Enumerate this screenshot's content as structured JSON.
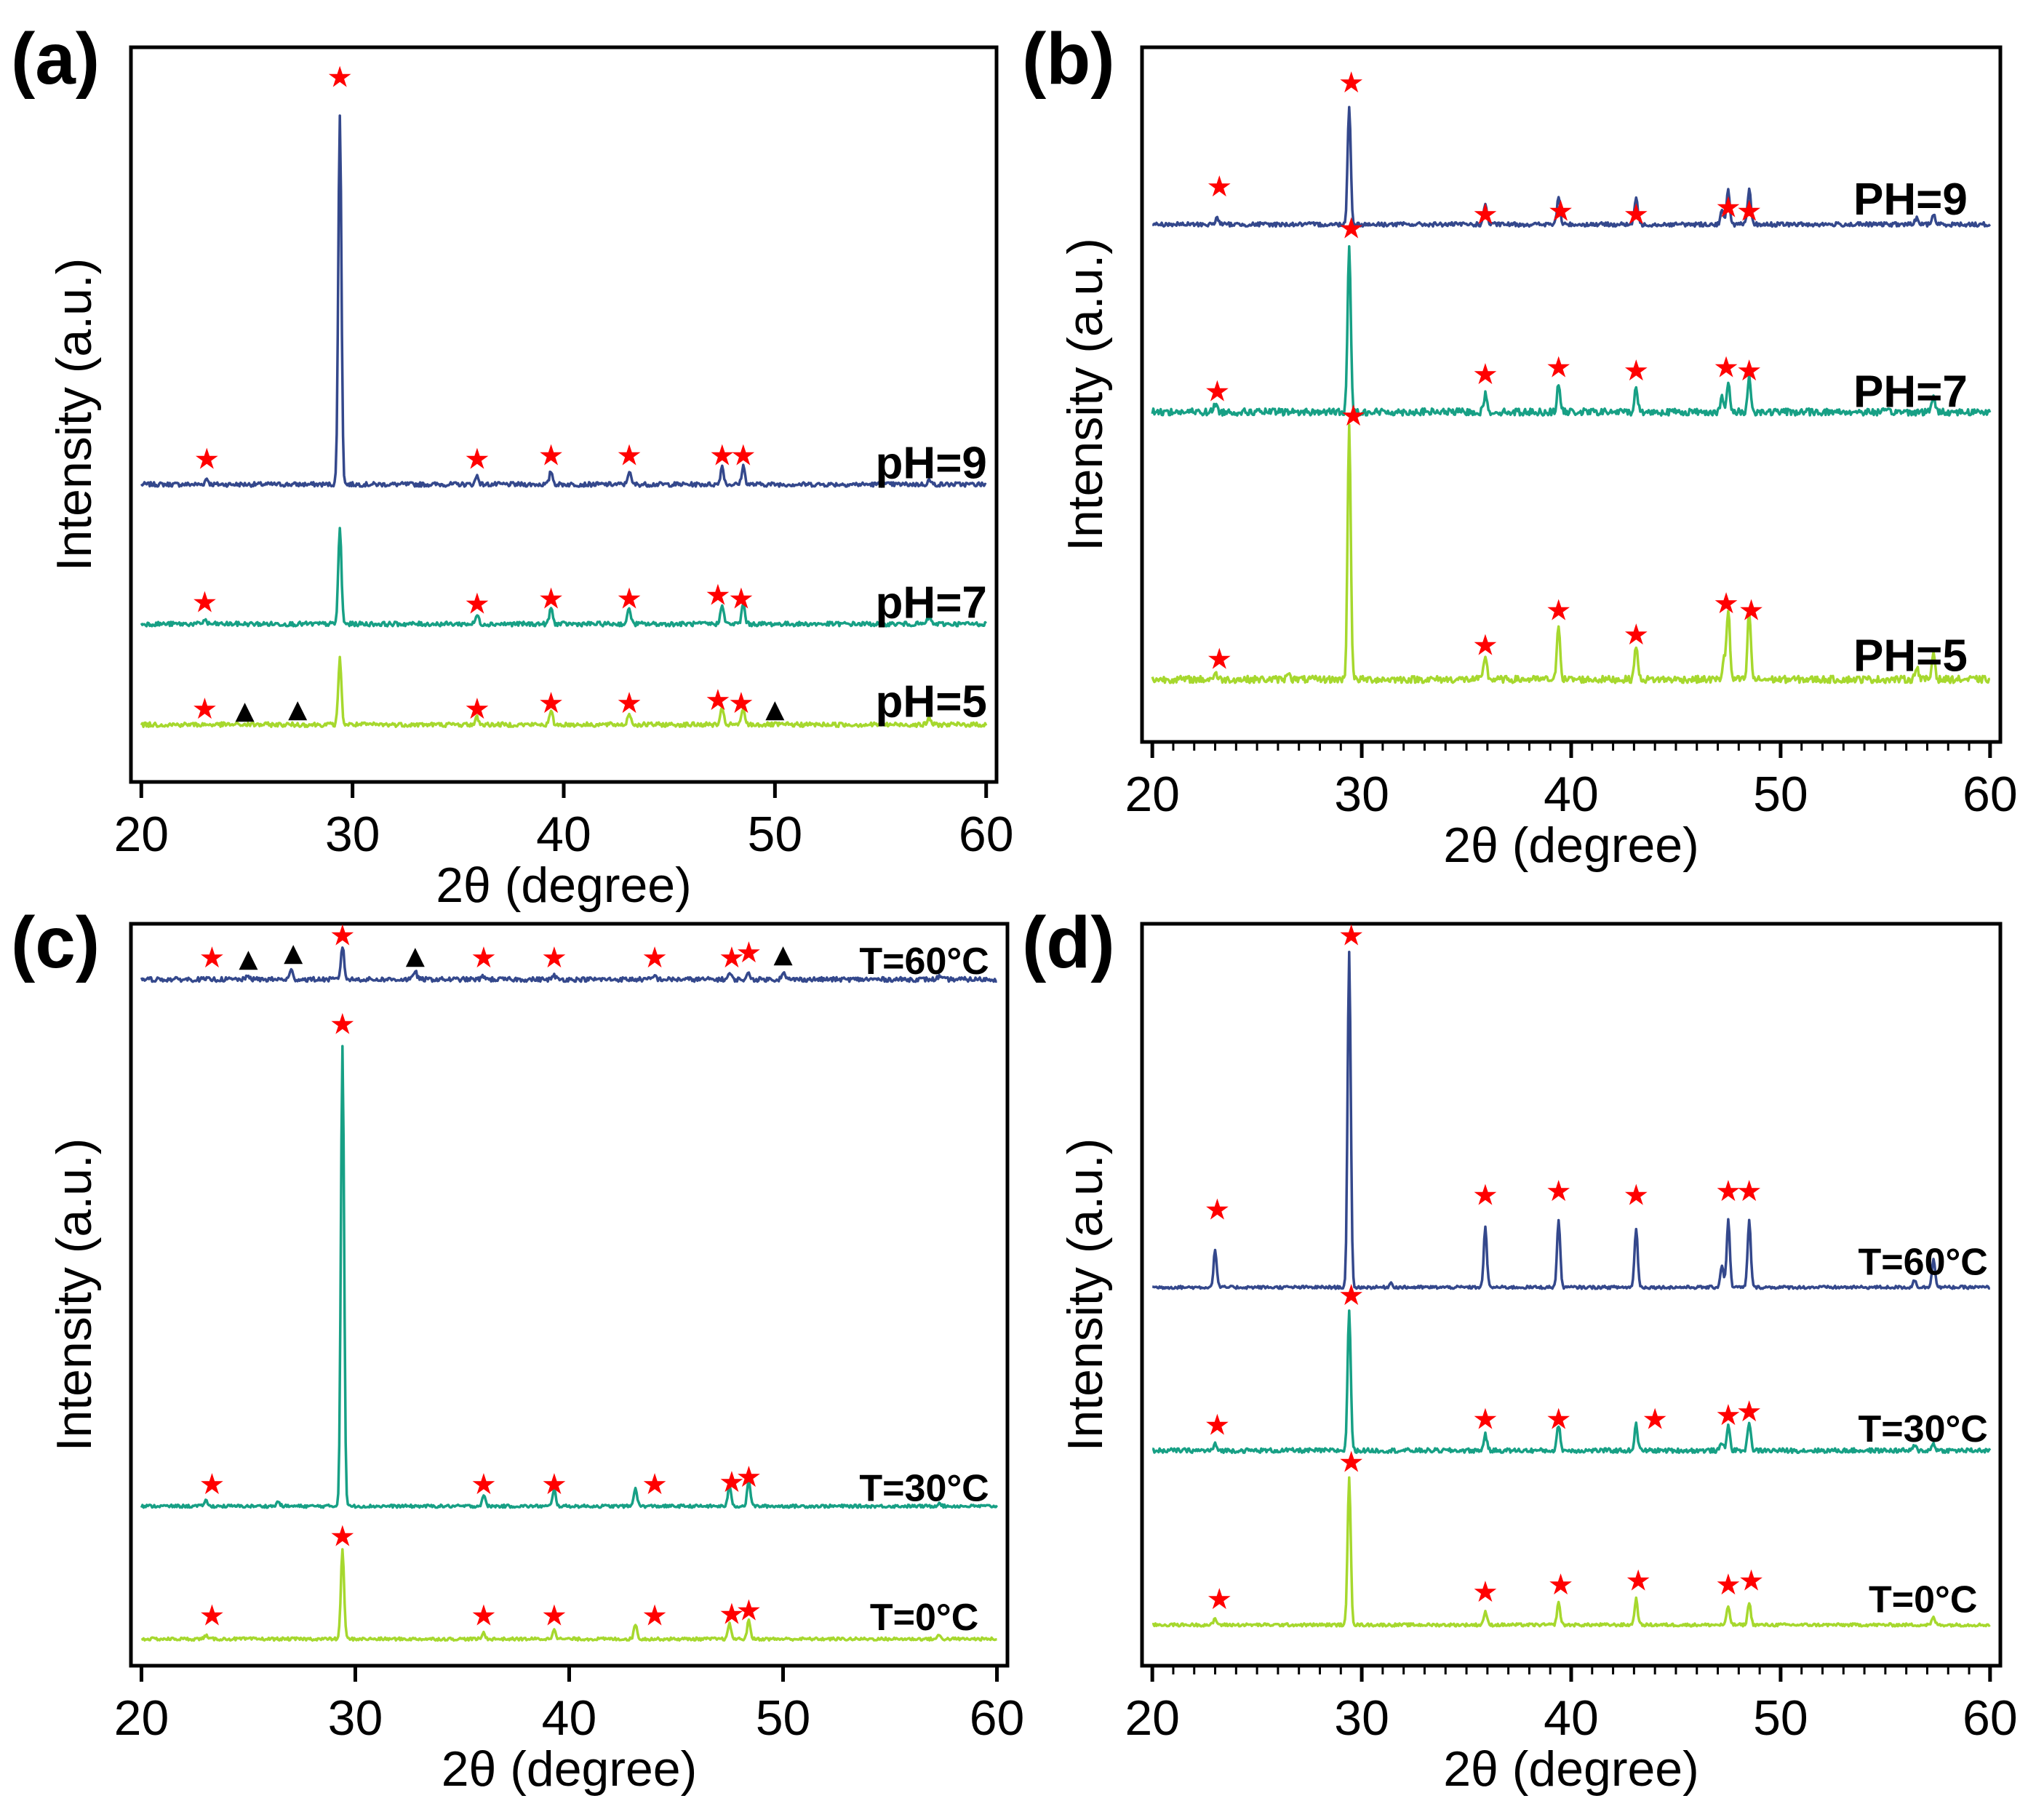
{
  "figure": {
    "colors": {
      "series_top": "#34488c",
      "series_mid": "#17a085",
      "series_bottom": "#a6d82e",
      "star": "#ff0000",
      "triangle": "#000000",
      "axes": "#000000"
    },
    "star_glyph": "★",
    "triangle_glyph": "▲",
    "x_ticks": [
      "20",
      "30",
      "40",
      "50",
      "60"
    ]
  },
  "chart_data": [
    {
      "type": "line",
      "panel_label": "(a)",
      "xlabel": "2θ (degree)",
      "ylabel": "Intensity (a.u.)",
      "xlim": [
        20,
        60
      ],
      "minor_ticks": false,
      "series_label_size": "large",
      "series": [
        {
          "name": "pH=9",
          "color": "#34488c",
          "baseline": 0.405,
          "noise": 0.003,
          "label_x": 57.4,
          "label_y": 0.435,
          "peaks": [
            [
              23.1,
              0.008
            ],
            [
              29.4,
              0.5
            ],
            [
              35.9,
              0.012
            ],
            [
              39.4,
              0.018
            ],
            [
              43.1,
              0.018
            ],
            [
              47.5,
              0.025
            ],
            [
              48.5,
              0.025
            ],
            [
              57.3,
              0.006
            ]
          ],
          "stars": [
            [
              23.1,
              0.44
            ],
            [
              29.4,
              0.96
            ],
            [
              35.9,
              0.44
            ],
            [
              39.4,
              0.445
            ],
            [
              43.1,
              0.445
            ],
            [
              47.5,
              0.445
            ],
            [
              48.5,
              0.445
            ]
          ],
          "triangles": []
        },
        {
          "name": "pH=7",
          "color": "#17a085",
          "baseline": 0.215,
          "noise": 0.003,
          "label_x": 57.4,
          "label_y": 0.245,
          "peaks": [
            [
              23.0,
              0.006
            ],
            [
              29.4,
              0.13
            ],
            [
              35.9,
              0.012
            ],
            [
              39.4,
              0.022
            ],
            [
              43.1,
              0.022
            ],
            [
              47.5,
              0.028
            ],
            [
              48.5,
              0.028
            ],
            [
              57.3,
              0.01
            ]
          ],
          "stars": [
            [
              23.0,
              0.245
            ],
            [
              35.9,
              0.243
            ],
            [
              39.4,
              0.25
            ],
            [
              43.1,
              0.25
            ],
            [
              47.3,
              0.255
            ],
            [
              48.4,
              0.25
            ]
          ],
          "triangles": []
        },
        {
          "name": "pH=5",
          "color": "#a6d82e",
          "baseline": 0.078,
          "noise": 0.003,
          "label_x": 57.4,
          "label_y": 0.11,
          "peaks": [
            [
              29.4,
              0.09
            ],
            [
              35.9,
              0.01
            ],
            [
              39.4,
              0.018
            ],
            [
              43.1,
              0.016
            ],
            [
              47.5,
              0.022
            ],
            [
              48.5,
              0.022
            ],
            [
              57.3,
              0.01
            ]
          ],
          "stars": [
            [
              23.0,
              0.1
            ],
            [
              35.9,
              0.1
            ],
            [
              39.4,
              0.108
            ],
            [
              43.1,
              0.108
            ],
            [
              47.3,
              0.112
            ],
            [
              48.4,
              0.108
            ]
          ],
          "triangles": [
            [
              24.9,
              0.098
            ],
            [
              27.4,
              0.1
            ],
            [
              50.0,
              0.1
            ]
          ]
        }
      ]
    },
    {
      "type": "line",
      "panel_label": "(b)",
      "xlabel": "2θ (degree)",
      "ylabel": "Intensity (a.u.)",
      "xlim": [
        20,
        60
      ],
      "minor_ticks": true,
      "series_label_size": "large",
      "series": [
        {
          "name": "PH=9",
          "color": "#34488c",
          "baseline": 0.745,
          "noise": 0.003,
          "label_x": 56.2,
          "label_y": 0.782,
          "peaks": [
            [
              23.1,
              0.01
            ],
            [
              29.4,
              0.17
            ],
            [
              35.9,
              0.03
            ],
            [
              39.4,
              0.04
            ],
            [
              43.1,
              0.04
            ],
            [
              47.2,
              0.02
            ],
            [
              47.5,
              0.05
            ],
            [
              48.5,
              0.05
            ],
            [
              56.5,
              0.01
            ],
            [
              57.3,
              0.015
            ]
          ],
          "stars": [
            [
              23.2,
              0.8
            ],
            [
              29.5,
              0.95
            ],
            [
              35.9,
              0.76
            ],
            [
              39.5,
              0.765
            ],
            [
              43.1,
              0.76
            ],
            [
              47.5,
              0.77
            ],
            [
              48.5,
              0.765
            ]
          ],
          "triangles": []
        },
        {
          "name": "PH=7",
          "color": "#17a085",
          "baseline": 0.475,
          "noise": 0.005,
          "label_x": 56.2,
          "label_y": 0.505,
          "peaks": [
            [
              23.0,
              0.012
            ],
            [
              29.4,
              0.24
            ],
            [
              35.9,
              0.025
            ],
            [
              39.4,
              0.04
            ],
            [
              43.1,
              0.035
            ],
            [
              47.2,
              0.02
            ],
            [
              47.5,
              0.04
            ],
            [
              48.5,
              0.05
            ],
            [
              57.3,
              0.025
            ]
          ],
          "stars": [
            [
              23.1,
              0.505
            ],
            [
              29.5,
              0.74
            ],
            [
              35.9,
              0.53
            ],
            [
              39.4,
              0.54
            ],
            [
              43.1,
              0.535
            ],
            [
              47.4,
              0.54
            ],
            [
              48.5,
              0.535
            ]
          ],
          "triangles": []
        },
        {
          "name": "PH=5",
          "color": "#a6d82e",
          "baseline": 0.09,
          "noise": 0.005,
          "label_x": 56.2,
          "label_y": 0.125,
          "peaks": [
            [
              23.0,
              0.01
            ],
            [
              26.5,
              0.012
            ],
            [
              29.4,
              0.37
            ],
            [
              35.9,
              0.035
            ],
            [
              39.4,
              0.08
            ],
            [
              43.1,
              0.05
            ],
            [
              47.3,
              0.03
            ],
            [
              47.5,
              0.1
            ],
            [
              48.5,
              0.1
            ],
            [
              56.5,
              0.02
            ],
            [
              57.3,
              0.04
            ]
          ],
          "stars": [
            [
              23.2,
              0.12
            ],
            [
              29.6,
              0.47
            ],
            [
              35.9,
              0.14
            ],
            [
              39.4,
              0.19
            ],
            [
              43.1,
              0.155
            ],
            [
              47.4,
              0.2
            ],
            [
              48.6,
              0.19
            ]
          ],
          "triangles": []
        }
      ]
    },
    {
      "type": "line",
      "panel_label": "(c)",
      "xlabel": "2θ (degree)",
      "ylabel": "Intensity (a.u.)",
      "xlim": [
        20,
        60
      ],
      "minor_ticks": false,
      "series_label_size": "small",
      "series": [
        {
          "name": "T=60°C",
          "color": "#34488c",
          "baseline": 0.925,
          "noise": 0.003,
          "label_x": 56.6,
          "label_y": 0.95,
          "peaks": [
            [
              25.0,
              0.005
            ],
            [
              27.0,
              0.012
            ],
            [
              29.4,
              0.045
            ],
            [
              32.8,
              0.012
            ],
            [
              36.0,
              0.005
            ],
            [
              39.3,
              0.005
            ],
            [
              44.0,
              0.005
            ],
            [
              47.5,
              0.008
            ],
            [
              48.4,
              0.008
            ],
            [
              50.0,
              0.01
            ],
            [
              57.3,
              0.004
            ]
          ],
          "stars": [
            [
              23.3,
              0.955
            ],
            [
              29.4,
              0.985
            ],
            [
              36.0,
              0.955
            ],
            [
              39.3,
              0.955
            ],
            [
              44.0,
              0.955
            ],
            [
              47.6,
              0.955
            ],
            [
              48.4,
              0.962
            ]
          ],
          "triangles": [
            [
              25.0,
              0.954
            ],
            [
              27.1,
              0.962
            ],
            [
              32.8,
              0.958
            ],
            [
              50.0,
              0.96
            ]
          ]
        },
        {
          "name": "T=30°C",
          "color": "#17a085",
          "baseline": 0.215,
          "noise": 0.002,
          "label_x": 56.6,
          "label_y": 0.24,
          "peaks": [
            [
              23.0,
              0.008
            ],
            [
              26.4,
              0.006
            ],
            [
              29.4,
              0.62
            ],
            [
              36.0,
              0.015
            ],
            [
              39.3,
              0.022
            ],
            [
              43.1,
              0.025
            ],
            [
              47.5,
              0.028
            ],
            [
              48.4,
              0.035
            ],
            [
              57.3,
              0.005
            ]
          ],
          "stars": [
            [
              23.3,
              0.245
            ],
            [
              29.4,
              0.865
            ],
            [
              36.0,
              0.245
            ],
            [
              39.3,
              0.245
            ],
            [
              44.0,
              0.245
            ],
            [
              47.6,
              0.248
            ],
            [
              48.4,
              0.255
            ]
          ],
          "triangles": []
        },
        {
          "name": "T=0°C",
          "color": "#a6d82e",
          "baseline": 0.036,
          "noise": 0.002,
          "label_x": 56.6,
          "label_y": 0.066,
          "peaks": [
            [
              23.0,
              0.005
            ],
            [
              29.4,
              0.12
            ],
            [
              36.0,
              0.008
            ],
            [
              39.3,
              0.014
            ],
            [
              43.1,
              0.02
            ],
            [
              47.5,
              0.02
            ],
            [
              48.4,
              0.025
            ],
            [
              57.3,
              0.005
            ]
          ],
          "stars": [
            [
              23.3,
              0.068
            ],
            [
              29.4,
              0.175
            ],
            [
              36.0,
              0.068
            ],
            [
              39.3,
              0.068
            ],
            [
              44.0,
              0.068
            ],
            [
              47.6,
              0.07
            ],
            [
              48.4,
              0.075
            ]
          ],
          "triangles": []
        }
      ]
    },
    {
      "type": "line",
      "panel_label": "(d)",
      "xlabel": "2θ (degree)",
      "ylabel": "Intensity (a.u.)",
      "xlim": [
        20,
        60
      ],
      "minor_ticks": true,
      "series_label_size": "small",
      "series": [
        {
          "name": "T=60°C",
          "color": "#34488c",
          "baseline": 0.51,
          "noise": 0.002,
          "label_x": 56.8,
          "label_y": 0.545,
          "peaks": [
            [
              23.0,
              0.05
            ],
            [
              29.4,
              0.45
            ],
            [
              31.4,
              0.006
            ],
            [
              35.9,
              0.08
            ],
            [
              39.4,
              0.09
            ],
            [
              43.1,
              0.08
            ],
            [
              47.2,
              0.03
            ],
            [
              47.5,
              0.09
            ],
            [
              48.5,
              0.09
            ],
            [
              56.4,
              0.01
            ],
            [
              57.3,
              0.04
            ]
          ],
          "stars": [
            [
              23.1,
              0.615
            ],
            [
              29.5,
              0.985
            ],
            [
              35.9,
              0.635
            ],
            [
              39.4,
              0.64
            ],
            [
              43.1,
              0.635
            ],
            [
              47.5,
              0.64
            ],
            [
              48.5,
              0.64
            ]
          ],
          "triangles": []
        },
        {
          "name": "T=30°C",
          "color": "#17a085",
          "baseline": 0.29,
          "noise": 0.003,
          "label_x": 56.8,
          "label_y": 0.32,
          "peaks": [
            [
              23.0,
              0.008
            ],
            [
              29.4,
              0.19
            ],
            [
              35.9,
              0.022
            ],
            [
              39.4,
              0.035
            ],
            [
              43.1,
              0.035
            ],
            [
              47.2,
              0.01
            ],
            [
              47.5,
              0.035
            ],
            [
              48.5,
              0.04
            ],
            [
              56.4,
              0.006
            ],
            [
              57.3,
              0.01
            ]
          ],
          "stars": [
            [
              23.1,
              0.325
            ],
            [
              29.5,
              0.5
            ],
            [
              35.9,
              0.333
            ],
            [
              39.4,
              0.333
            ],
            [
              44.0,
              0.333
            ],
            [
              47.5,
              0.338
            ],
            [
              48.5,
              0.343
            ]
          ],
          "triangles": []
        },
        {
          "name": "T=0°C",
          "color": "#a6d82e",
          "baseline": 0.055,
          "noise": 0.002,
          "label_x": 56.8,
          "label_y": 0.09,
          "peaks": [
            [
              23.0,
              0.008
            ],
            [
              29.4,
              0.2
            ],
            [
              35.9,
              0.018
            ],
            [
              39.4,
              0.03
            ],
            [
              43.1,
              0.035
            ],
            [
              47.5,
              0.025
            ],
            [
              48.5,
              0.03
            ],
            [
              57.3,
              0.01
            ]
          ],
          "stars": [
            [
              23.2,
              0.09
            ],
            [
              29.5,
              0.275
            ],
            [
              35.9,
              0.1
            ],
            [
              39.5,
              0.11
            ],
            [
              43.2,
              0.115
            ],
            [
              47.5,
              0.11
            ],
            [
              48.6,
              0.115
            ]
          ],
          "triangles": []
        }
      ]
    }
  ]
}
